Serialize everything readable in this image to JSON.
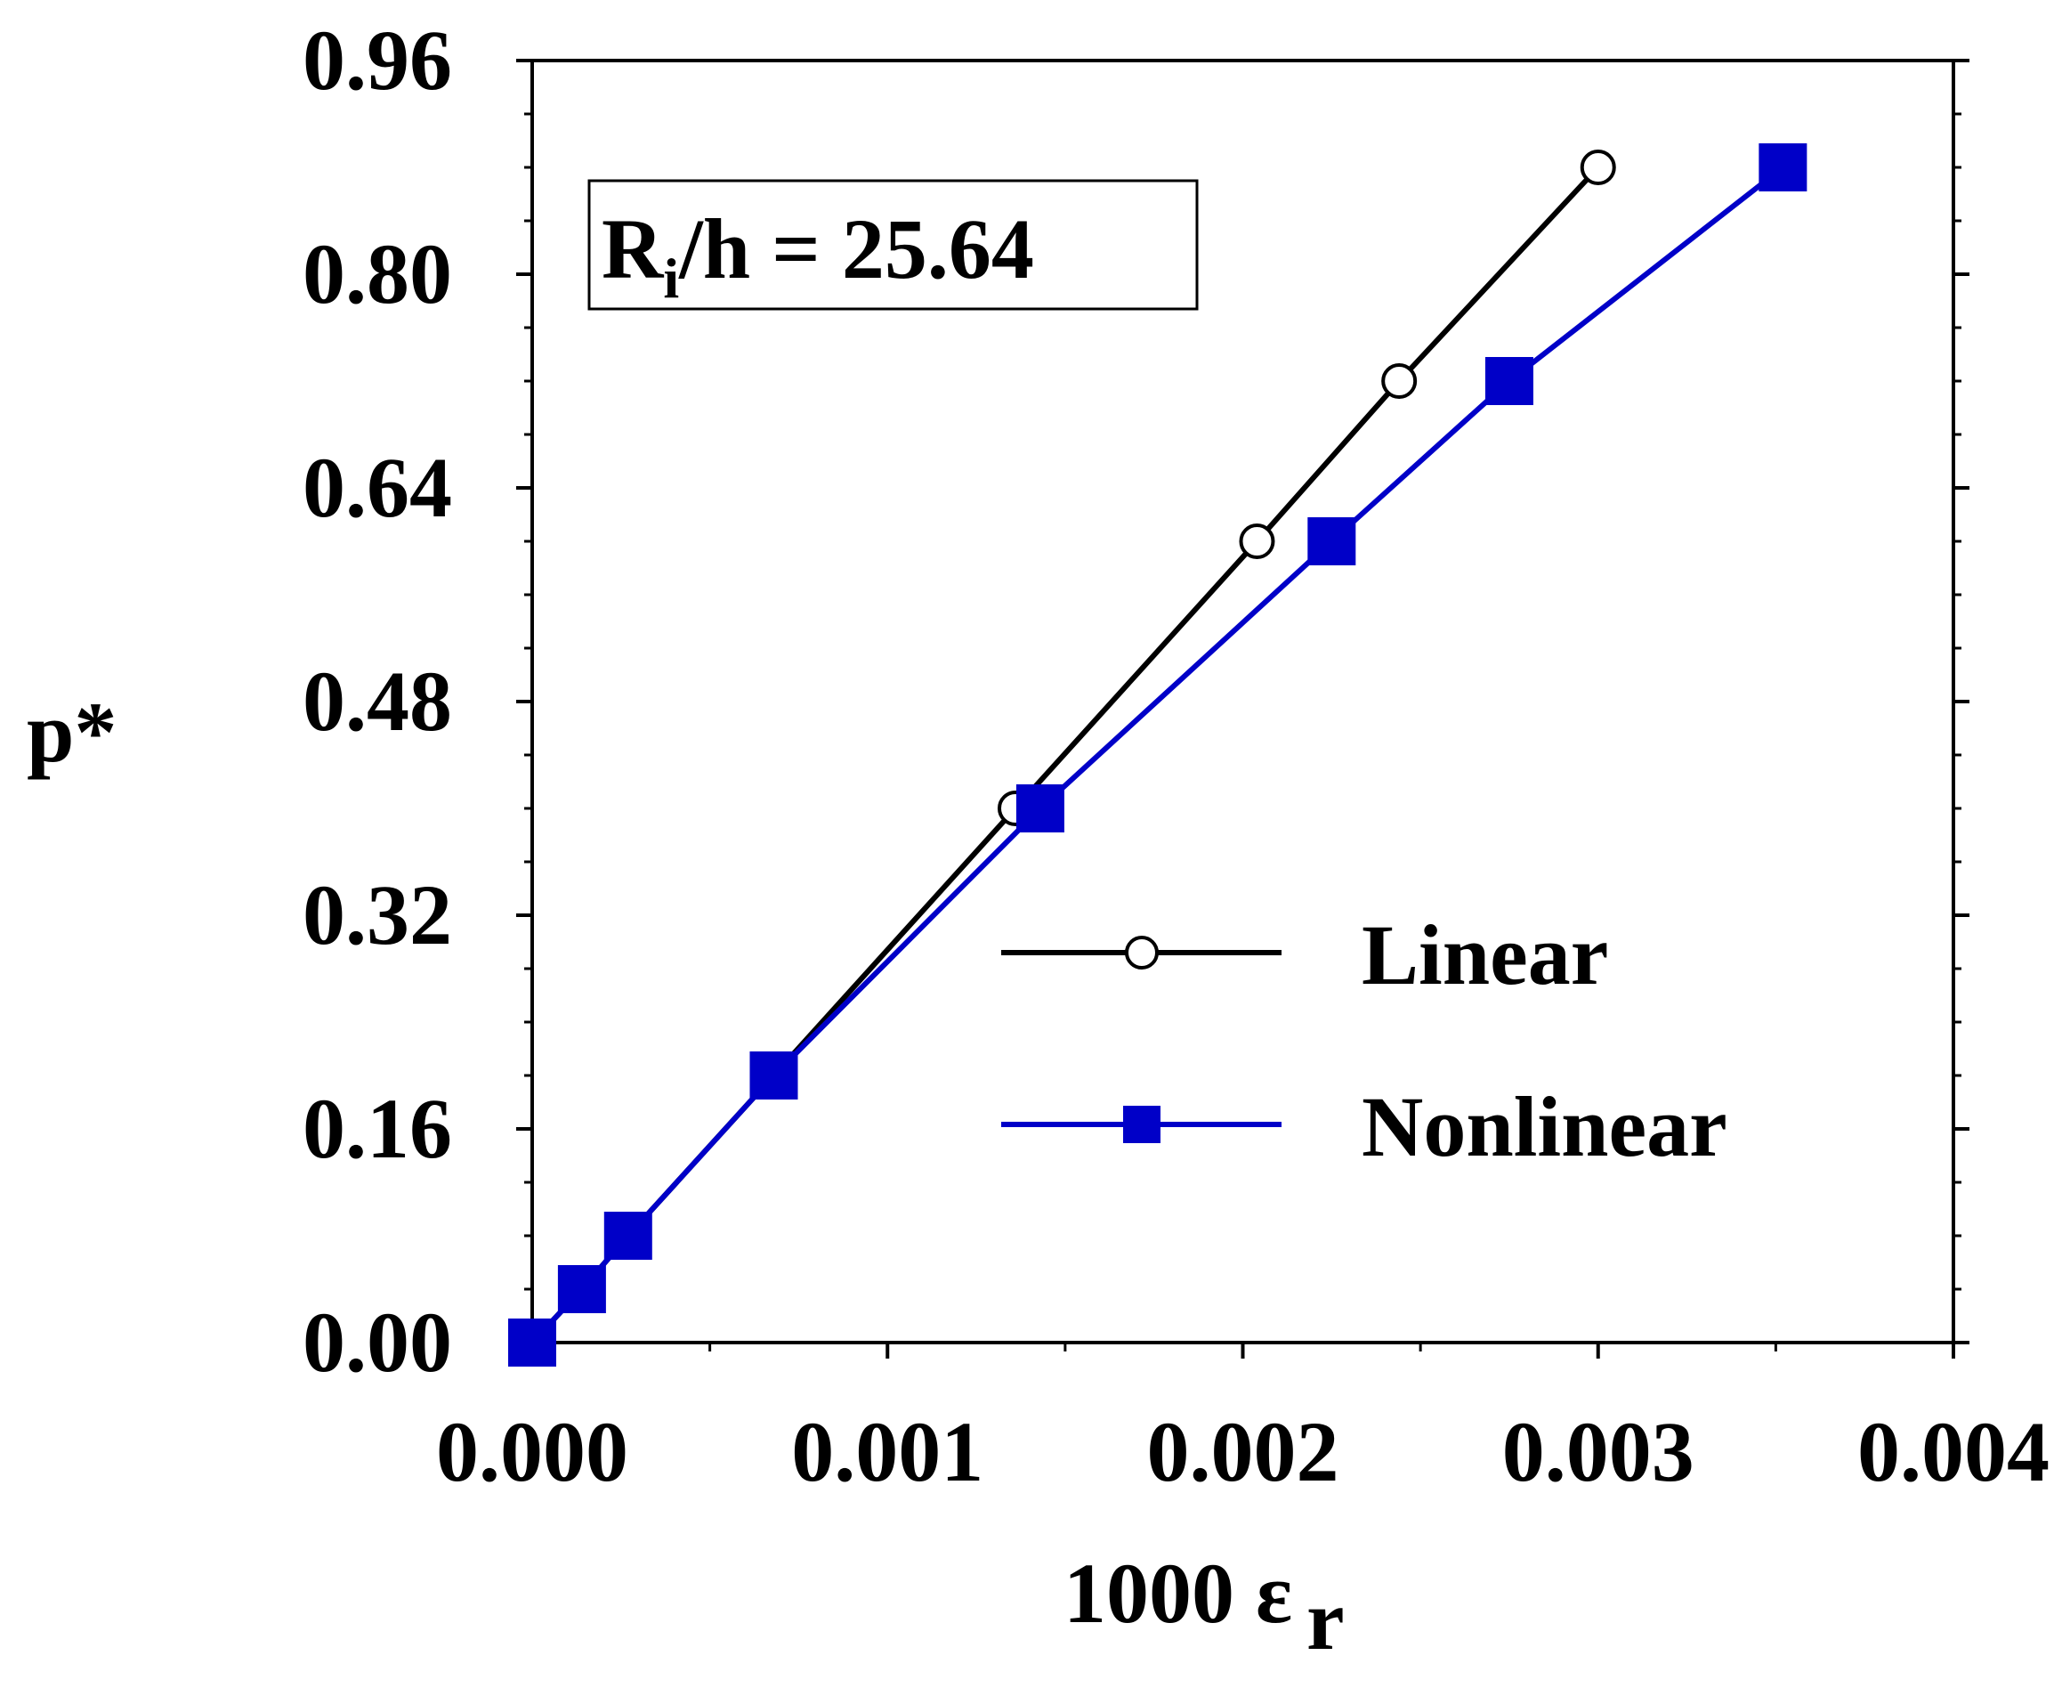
{
  "chart_data": {
    "type": "line",
    "title": "",
    "xlabel": "1000 ε",
    "xlabel_subscript": "r",
    "ylabel": "p*",
    "xlim": [
      0.0,
      0.004
    ],
    "ylim": [
      0.0,
      0.96
    ],
    "xticks": [
      "0.000",
      "0.001",
      "0.002",
      "0.003",
      "0.004"
    ],
    "xtick_values": [
      0.0,
      0.001,
      0.002,
      0.003,
      0.004
    ],
    "yticks": [
      "0.00",
      "0.16",
      "0.32",
      "0.48",
      "0.64",
      "0.80",
      "0.96"
    ],
    "ytick_values": [
      0.0,
      0.16,
      0.32,
      0.48,
      0.64,
      0.8,
      0.96
    ],
    "grid": false,
    "legend_position": "lower-right",
    "annotation": {
      "main": "R",
      "sub": "i",
      "rest": "/h = 25.64"
    },
    "series": [
      {
        "name": "Linear",
        "color": "#000000",
        "marker": "open-circle",
        "x": [
          0.0,
          0.00014,
          0.00027,
          0.00068,
          0.00136,
          0.00204,
          0.00244,
          0.003
        ],
        "y": [
          0.0,
          0.04,
          0.08,
          0.2,
          0.4,
          0.6,
          0.72,
          0.88
        ]
      },
      {
        "name": "Nonlinear",
        "color": "#0000c8",
        "marker": "filled-square",
        "x": [
          0.0,
          0.00014,
          0.00027,
          0.00068,
          0.00143,
          0.00225,
          0.00275,
          0.00352
        ],
        "y": [
          0.0,
          0.04,
          0.08,
          0.2,
          0.4,
          0.6,
          0.72,
          0.88
        ]
      }
    ]
  }
}
